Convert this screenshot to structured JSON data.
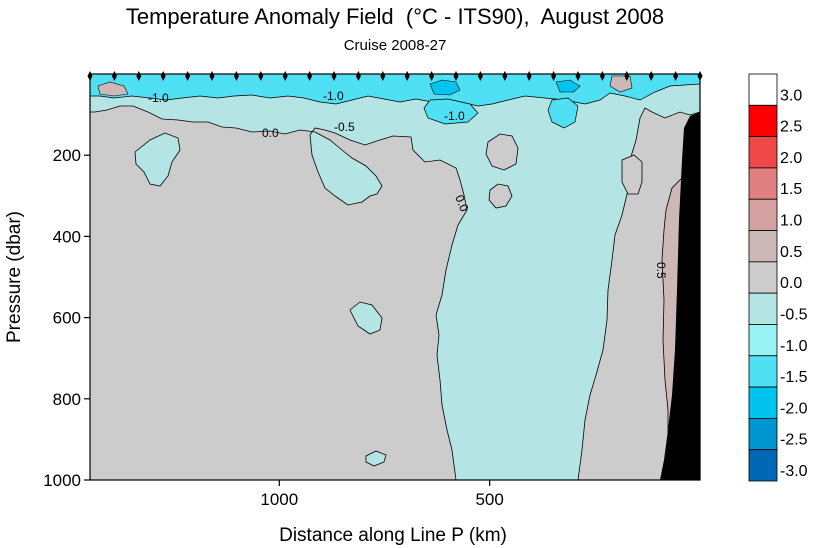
{
  "title": "Temperature Anomaly Field  (°C - ITS90),  August 2008",
  "subtitle": "Cruise 2008-27",
  "chart_data": {
    "type": "heatmap",
    "title": "Temperature Anomaly Field  (°C - ITS90),  August 2008",
    "subtitle": "Cruise 2008-27",
    "xlabel": "Distance along Line P  (km)",
    "ylabel": "Pressure  (dbar)",
    "x_direction": "reversed",
    "xlim": [
      1450,
      0
    ],
    "ylim": [
      1000,
      0
    ],
    "x_ticks": [
      1000,
      500
    ],
    "x_tick_labels": [
      "1000",
      "500"
    ],
    "y_ticks": [
      200,
      400,
      600,
      800,
      1000
    ],
    "y_tick_labels": [
      "200",
      "400",
      "600",
      "800",
      "1000"
    ],
    "colorbar": {
      "levels": [
        3.0,
        2.5,
        2.0,
        1.5,
        1.0,
        0.5,
        0.0,
        -0.5,
        -1.0,
        -1.5,
        -2.0,
        -2.5,
        -3.0
      ],
      "labels": [
        "3.0",
        "2.5",
        "2.0",
        "1.5",
        "1.0",
        "0.5",
        "0.0",
        "-0.5",
        "-1.0",
        "-1.5",
        "-2.0",
        "-2.5",
        "-3.0"
      ],
      "colors": [
        "#ffffff",
        "#ff0000",
        "#f04848",
        "#e08080",
        "#d4a0a0",
        "#cdb8b8",
        "#cccccc",
        "#b4e4e4",
        "#96f4f4",
        "#50e0f4",
        "#00c4f0",
        "#0096d2",
        "#0068b4"
      ]
    },
    "regions": [
      {
        "range": "0.0 to 0.5",
        "color": "#cccccc",
        "where": "western and central interior below about 150 dbar"
      },
      {
        "range": "-0.5 to 0.0",
        "color": "#b4e4e4",
        "where": "upper 150 dbar and a band between about 250 and 850 km down to 1000 dbar"
      },
      {
        "range": "-1.5 to -0.5",
        "color": "#50e0f4",
        "where": "surface layer above about 100 dbar"
      },
      {
        "range": "0.5 to 1.0",
        "color": "#cdb8b8",
        "where": "eastern boundary near the continental slope"
      }
    ],
    "contour_labels": [
      "-1.0",
      "-1.0",
      "-1.0",
      "0.0",
      "-0.5",
      "0.0",
      "0.5"
    ],
    "stations_marked": true,
    "bathymetry": "continental slope shown in black at the eastern end"
  }
}
